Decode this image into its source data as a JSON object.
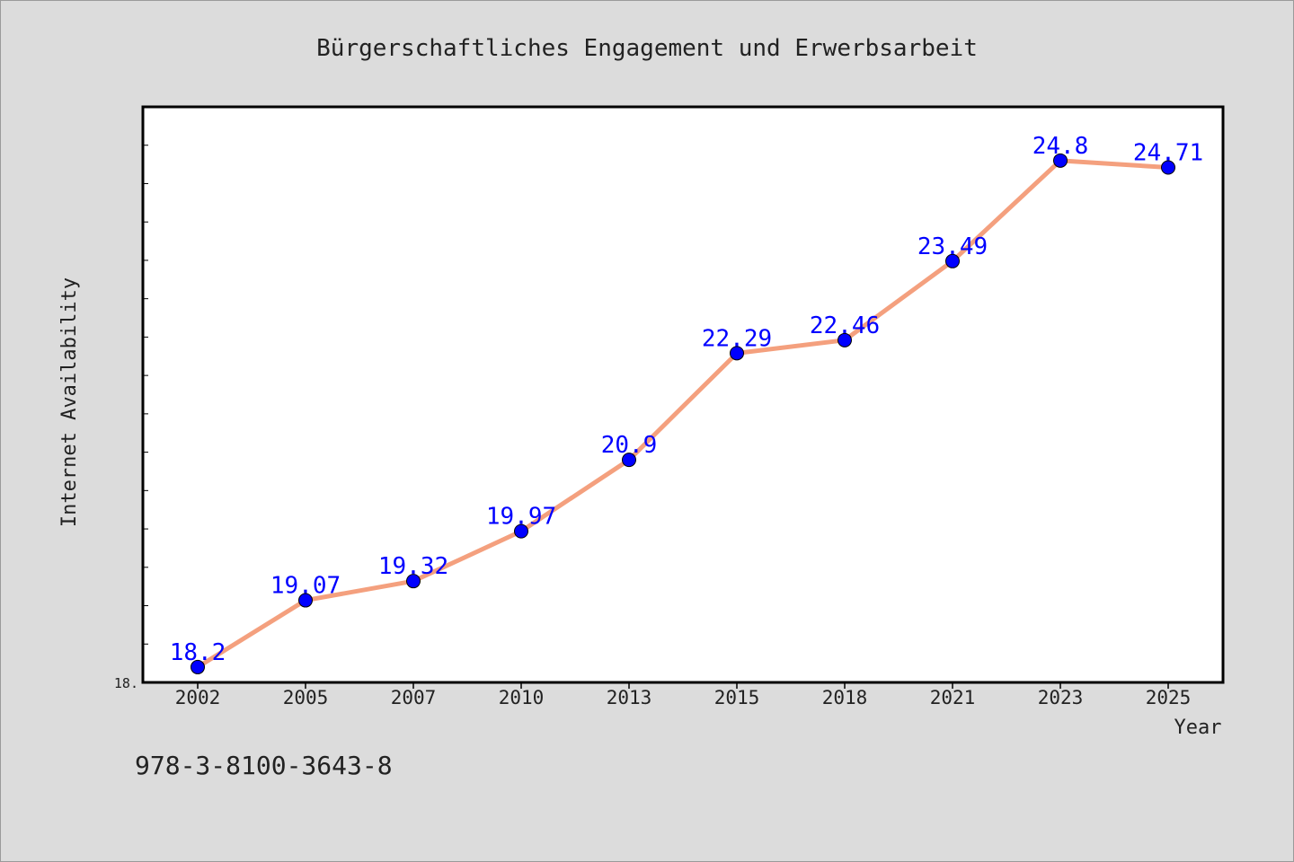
{
  "chart_data": {
    "type": "line",
    "title": "Bürgerschaftliches Engagement und Erwerbsarbeit",
    "xlabel": "Year",
    "ylabel": "Internet Availability",
    "categories": [
      "2002",
      "2005",
      "2007",
      "2010",
      "2013",
      "2015",
      "2018",
      "2021",
      "2023",
      "2025"
    ],
    "series": [
      {
        "values": [
          18.2,
          19.07,
          19.32,
          19.97,
          20.9,
          22.29,
          22.46,
          23.49,
          24.8,
          24.71
        ],
        "labels": [
          "18.2",
          "19.07",
          "19.32",
          "19.97",
          "20.9",
          "22.29",
          "22.46",
          "23.49",
          "24.8",
          "24.71"
        ],
        "color": "#f4a07e",
        "marker_color": "#0000ff"
      }
    ],
    "ylim": [
      18.0,
      25.5
    ],
    "y_tick_label": "18.",
    "grid": false,
    "legend": "none"
  },
  "footer": {
    "isbn": "978-3-8100-3643-8"
  },
  "colors": {
    "background": "#dcdcdc",
    "plot_background": "#ffffff",
    "line": "#f4a07e",
    "marker": "#0000ff",
    "data_label": "#0000ff"
  }
}
